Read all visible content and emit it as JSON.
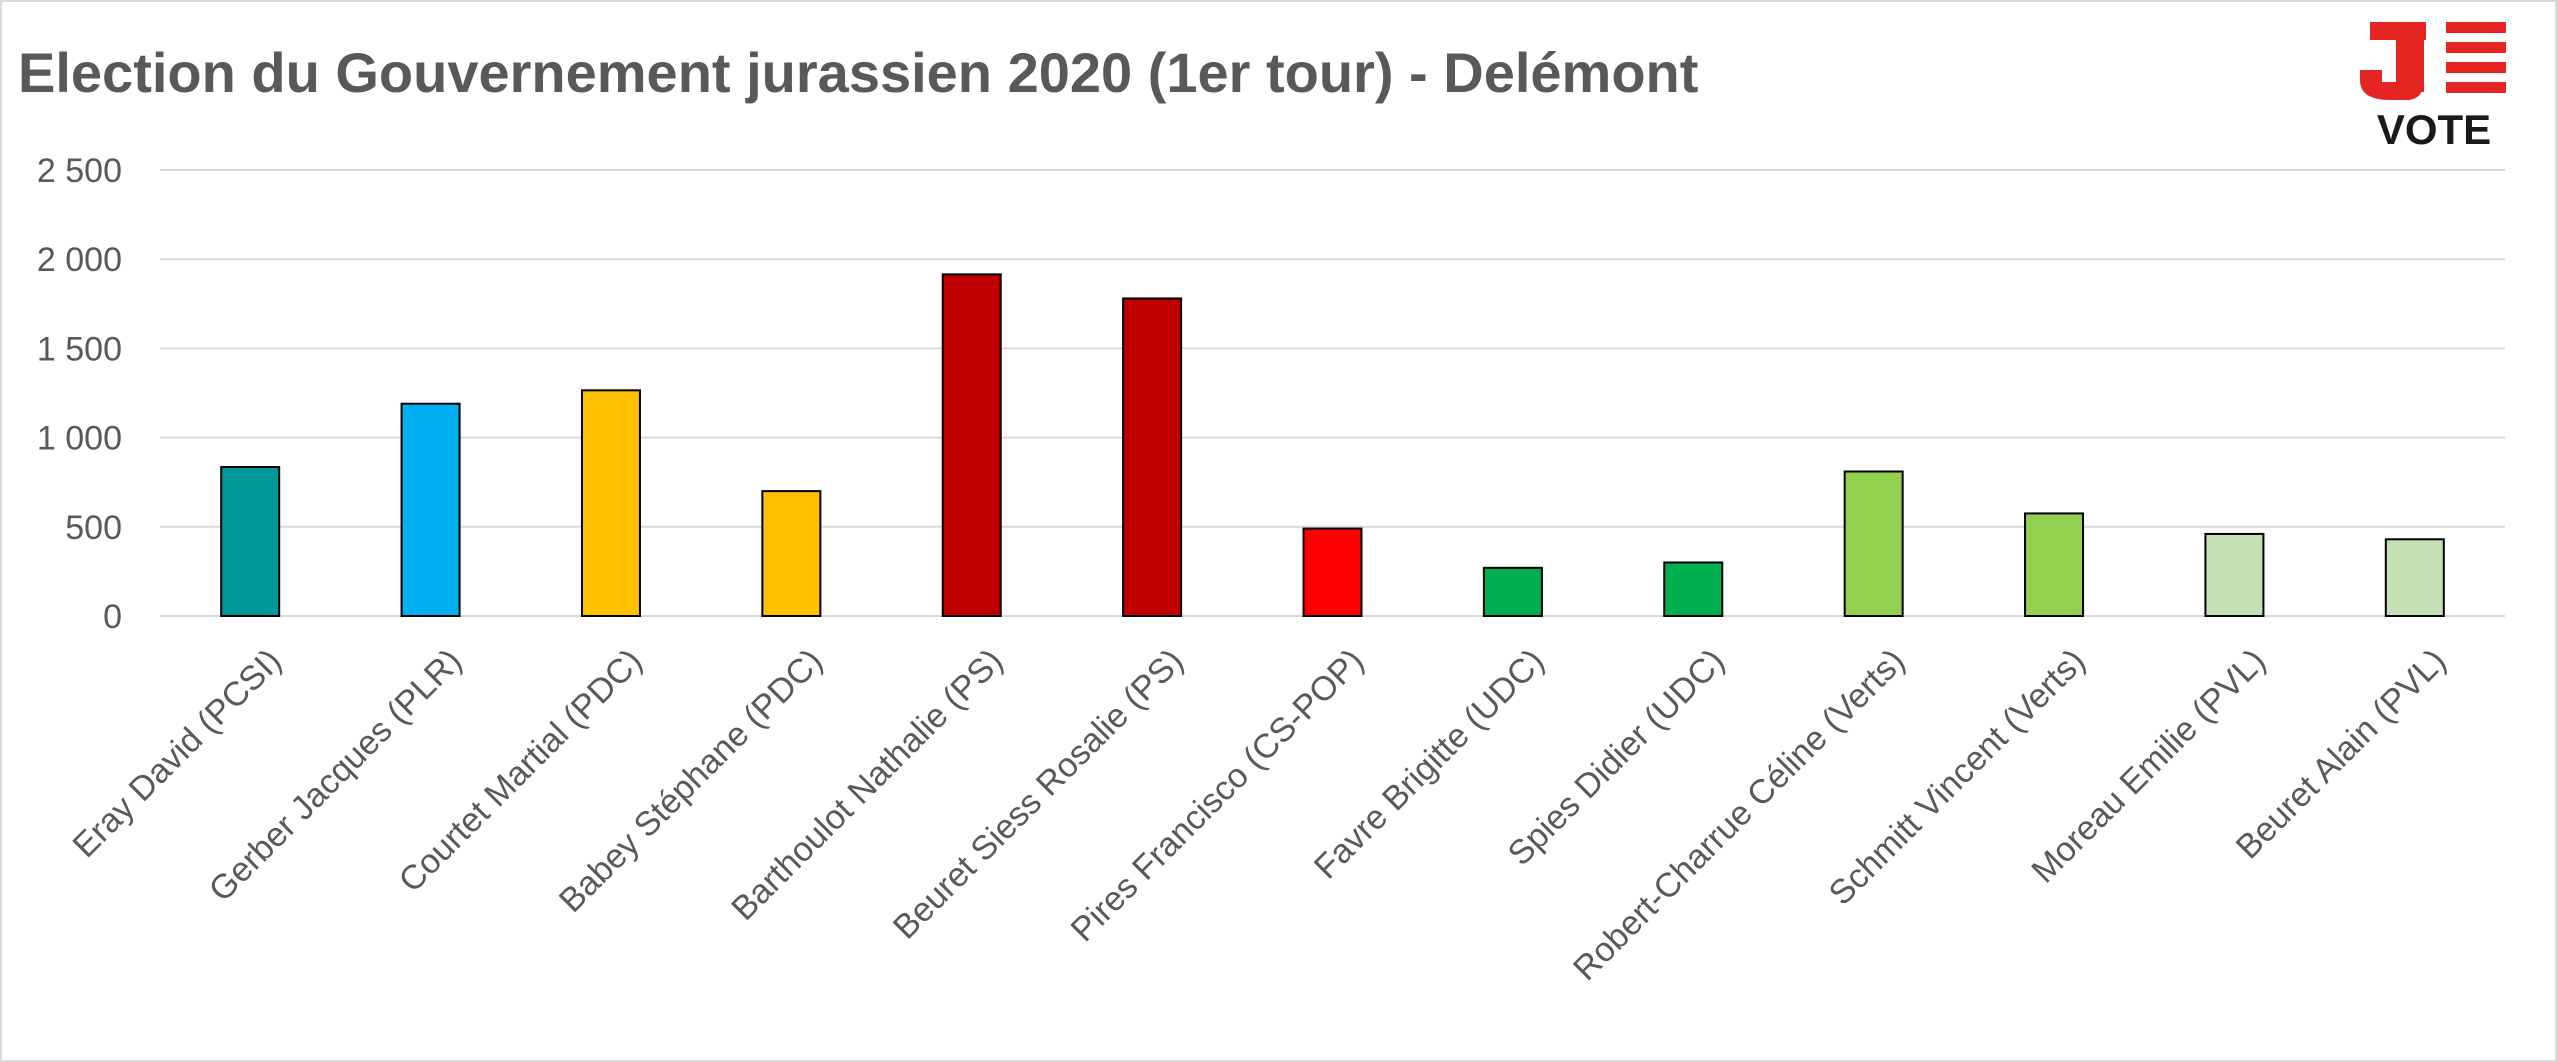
{
  "chart_data": {
    "type": "bar",
    "title": "Election du Gouvernement jurassien 2020 (1er tour) - Delémont",
    "xlabel": "",
    "ylabel": "",
    "ylim": [
      0,
      2500
    ],
    "yticks": [
      0,
      500,
      1000,
      1500,
      2000,
      2500
    ],
    "ytick_labels": [
      "0",
      "500",
      "1 000",
      "1 500",
      "2 000",
      "2 500"
    ],
    "grid": true,
    "legend": "none",
    "categories": [
      "Eray David (PCSI)",
      "Gerber Jacques (PLR)",
      "Courtet Martial (PDC)",
      "Babey Stéphane (PDC)",
      "Barthoulot Nathalie (PS)",
      "Beuret Siess Rosalie (PS)",
      "Pires Francisco (CS-POP)",
      "Favre Brigitte (UDC)",
      "Spies Didier (UDC)",
      "Robert-Charrue Céline (Verts)",
      "Schmitt Vincent (Verts)",
      "Moreau Emilie (PVL)",
      "Beuret Alain (PVL)"
    ],
    "values": [
      835,
      1190,
      1265,
      700,
      1915,
      1780,
      490,
      270,
      300,
      810,
      575,
      460,
      430
    ],
    "colors": [
      "#009999",
      "#00b0f0",
      "#ffc000",
      "#ffc000",
      "#c00000",
      "#c00000",
      "#ff0000",
      "#00b050",
      "#00b050",
      "#92d050",
      "#92d050",
      "#c5e0b4",
      "#c5e0b4"
    ]
  },
  "logo": {
    "mark": "J",
    "text": "VOTE",
    "color": "#e52521"
  },
  "colors": {
    "grid": "#d9d9d9",
    "text": "#595959",
    "bar_outline": "#000000"
  }
}
